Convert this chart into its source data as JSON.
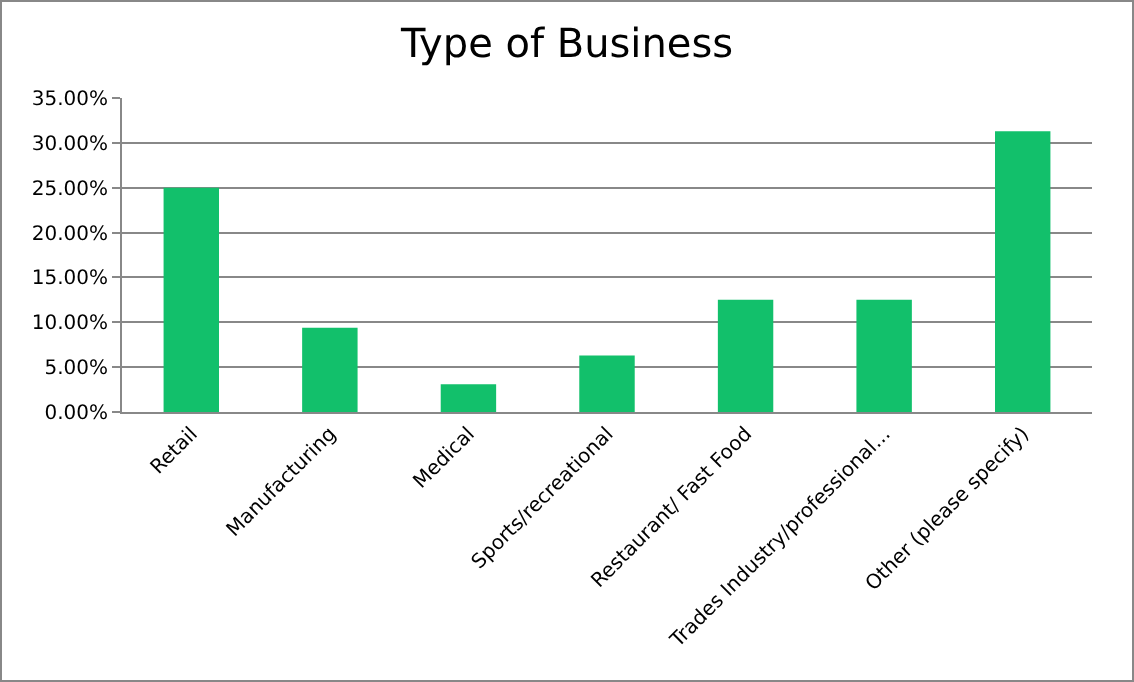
{
  "chart_data": {
    "type": "bar",
    "title": "Type of Business",
    "categories": [
      "Retail",
      "Manufacturing",
      "Medical",
      "Sports/recreational",
      "Restaurant/ Fast Food",
      "Trades Industry/professional...",
      "Other (please specify)"
    ],
    "values": [
      25,
      9.4,
      3.1,
      6.3,
      12.5,
      12.5,
      31.3
    ],
    "color": "#12c06b",
    "ylim": [
      0,
      35
    ],
    "yticks": [
      {
        "value": 0,
        "label": "0.00%"
      },
      {
        "value": 5,
        "label": "5.00%"
      },
      {
        "value": 10,
        "label": "10.00%"
      },
      {
        "value": 15,
        "label": "15.00%"
      },
      {
        "value": 20,
        "label": "20.00%"
      },
      {
        "value": 25,
        "label": "25.00%"
      },
      {
        "value": 30,
        "label": "30.00%"
      },
      {
        "value": 35,
        "label": "35.00%"
      }
    ],
    "grid": "y"
  }
}
